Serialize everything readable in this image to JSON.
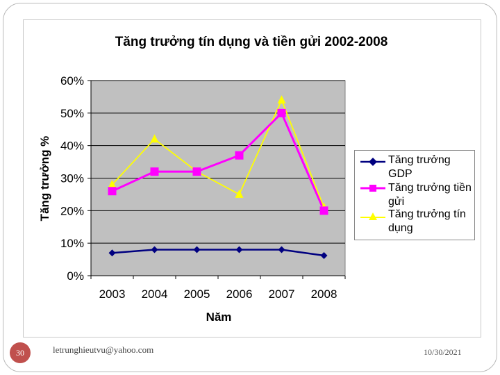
{
  "chart_data": {
    "type": "line",
    "title": "Tăng trưởng tín dụng và tiền gửi  2002-2008",
    "xlabel": "Năm",
    "ylabel": "Tăng trưởng %",
    "categories": [
      "2003",
      "2004",
      "2005",
      "2006",
      "2007",
      "2008"
    ],
    "y_ticks": [
      "0%",
      "10%",
      "20%",
      "30%",
      "40%",
      "50%",
      "60%"
    ],
    "ylim": [
      0,
      60
    ],
    "grid": "horizontal",
    "legend_position": "right",
    "series": [
      {
        "name": "Tăng trưởng GDP",
        "values": [
          7,
          8,
          8,
          8,
          8,
          6.2
        ],
        "color": "#000080",
        "marker": "diamond"
      },
      {
        "name": "Tăng trưởng tiền gửi",
        "values": [
          26,
          32,
          32,
          37,
          50,
          20
        ],
        "color": "#ff00ff",
        "marker": "square"
      },
      {
        "name": "Tăng trưởng tín dụng",
        "values": [
          28,
          42,
          32,
          25,
          54,
          21
        ],
        "color": "#ffff00",
        "marker": "triangle"
      }
    ],
    "plot_background": "#c0c0c0"
  },
  "footer": {
    "slide_number": "30",
    "email": "letrunghieutvu@yahoo.com",
    "date": "10/30/2021"
  }
}
